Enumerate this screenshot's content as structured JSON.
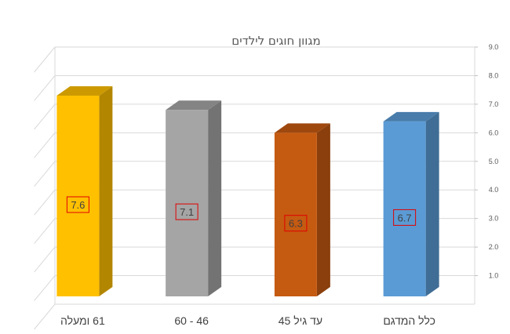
{
  "chart_data": {
    "type": "bar",
    "style": "3d-column",
    "title": "מגוון חוגים לילדים",
    "categories": [
      "כלל המדגם",
      "עד גיל 45",
      "46 - 60",
      "61 ומעלה"
    ],
    "values": [
      6.7,
      6.3,
      7.1,
      7.6
    ],
    "data_labels": [
      "6.7",
      "6.3",
      "7.1",
      "7.6"
    ],
    "yticks": [
      "1.0",
      "2.0",
      "3.0",
      "4.0",
      "5.0",
      "6.0",
      "7.0",
      "8.0",
      "9.0"
    ],
    "ylim": [
      0,
      9
    ],
    "y_axis_side": "right",
    "category_order": "right-to-left",
    "grid": true,
    "colors": [
      "#5B9BD5",
      "#C55A11",
      "#A5A5A5",
      "#FFC000"
    ],
    "xlabel": "",
    "ylabel": ""
  }
}
